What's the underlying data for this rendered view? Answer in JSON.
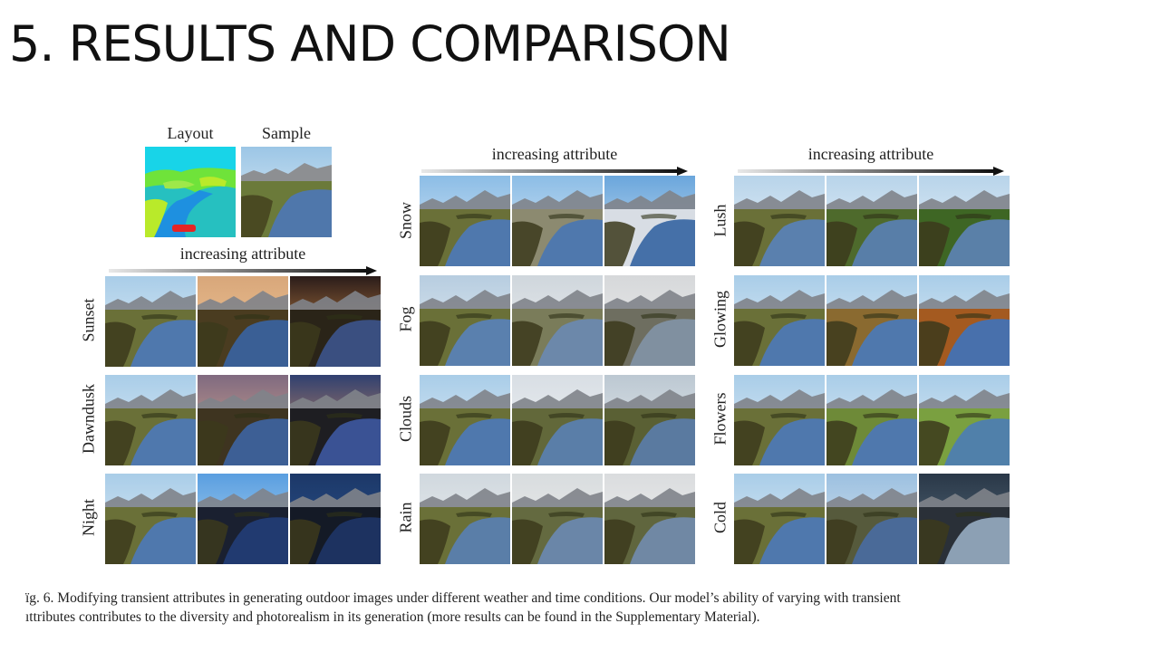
{
  "slide": {
    "title": "5. RESULTS AND COMPARISON"
  },
  "figure": {
    "header_layout": "Layout",
    "header_sample": "Sample",
    "arrow_label": "increasing attribute",
    "groups": [
      {
        "rows": [
          "Sunset",
          "Dawndusk",
          "Night"
        ]
      },
      {
        "rows": [
          "Snow",
          "Fog",
          "Clouds",
          "Rain"
        ]
      },
      {
        "rows": [
          "Lush",
          "Glowing",
          "Flowers",
          "Cold"
        ]
      }
    ],
    "caption": {
      "line1": "ïg. 6.  Modifying transient attributes in generating outdoor images under different weather and time conditions. Our model’s ability of varying with transient",
      "line2": "ıttributes contributes to the diversity and photorealism in its generation (more results can be found in the Supplementary Material)."
    }
  }
}
